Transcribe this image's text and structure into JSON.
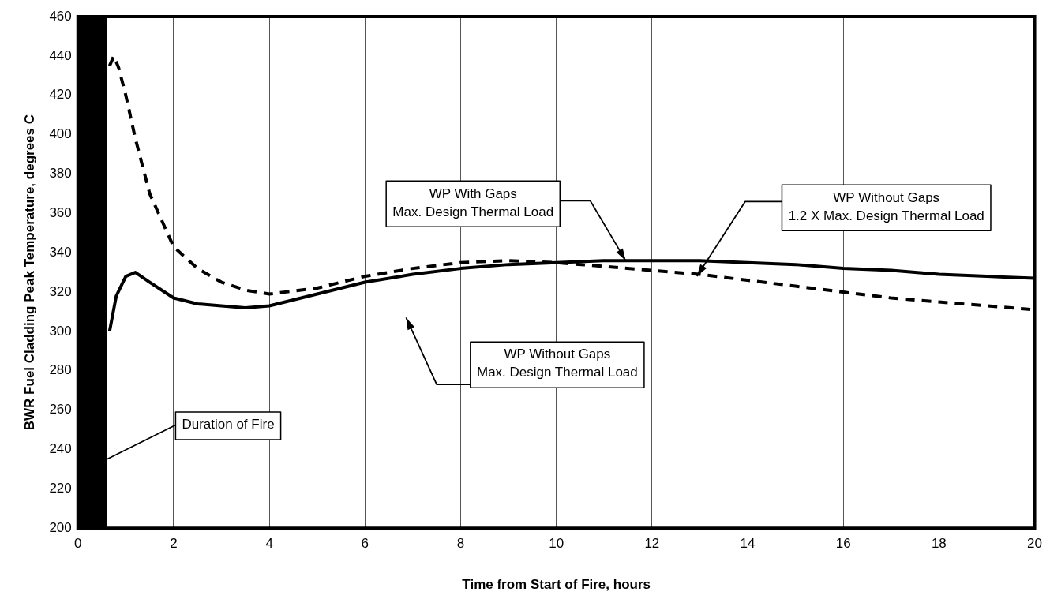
{
  "chart_data": {
    "type": "line",
    "xlabel": "Time from Start of Fire, hours",
    "ylabel": "BWR Fuel Cladding Peak Temperature, degrees C",
    "xlim": [
      0,
      20
    ],
    "xticks": [
      0,
      2,
      4,
      6,
      8,
      10,
      12,
      14,
      16,
      18,
      20
    ],
    "ylim": [
      200,
      460
    ],
    "yticks": [
      200,
      220,
      240,
      260,
      280,
      300,
      320,
      340,
      360,
      380,
      400,
      420,
      440,
      460
    ],
    "grid": "x",
    "legend": false,
    "marker": "none",
    "bands": [
      {
        "axis": "x",
        "from": 0,
        "to": 0.6,
        "color": "#000000"
      }
    ],
    "series": [
      {
        "color": "#000000",
        "line_style": "solid",
        "x": [
          0.66,
          0.8,
          1.0,
          1.2,
          1.5,
          2,
          2.5,
          3,
          3.5,
          4,
          5,
          6,
          7,
          8,
          9,
          10,
          11,
          12,
          13,
          14,
          15,
          16,
          17,
          18,
          19,
          20
        ],
        "values": [
          300,
          318,
          328,
          330,
          325,
          317,
          314,
          313,
          312,
          313,
          319,
          325,
          329,
          332,
          334,
          335,
          336,
          336,
          336,
          335,
          334,
          332,
          331,
          329,
          328,
          327
        ]
      },
      {
        "color": "#000000",
        "line_style": "dashed",
        "x": [
          0.66,
          0.75,
          0.85,
          1,
          1.2,
          1.5,
          2,
          2.5,
          3,
          3.5,
          4,
          5,
          6,
          7,
          8,
          9,
          10,
          11,
          12,
          13,
          14,
          15,
          16,
          17,
          18,
          19,
          20
        ],
        "values": [
          435,
          440,
          434,
          420,
          398,
          370,
          343,
          332,
          325,
          321,
          319,
          322,
          328,
          332,
          335,
          336,
          335,
          333,
          331,
          329,
          326,
          323,
          320,
          317,
          315,
          313,
          311
        ]
      }
    ],
    "annotations": [
      {
        "text": "WP With Gaps\nMax. Design Thermal Load",
        "x": 11.45,
        "y": 336
      },
      {
        "text": "WP Without Gaps\n1.2 X Max. Design Thermal Load",
        "x": 12.94,
        "y": 328
      },
      "WP Without Gaps\nMax. Design Thermal Load",
      {
        "text": "Duration of Fire",
        "x": 0.6,
        "y": 235
      }
    ]
  }
}
